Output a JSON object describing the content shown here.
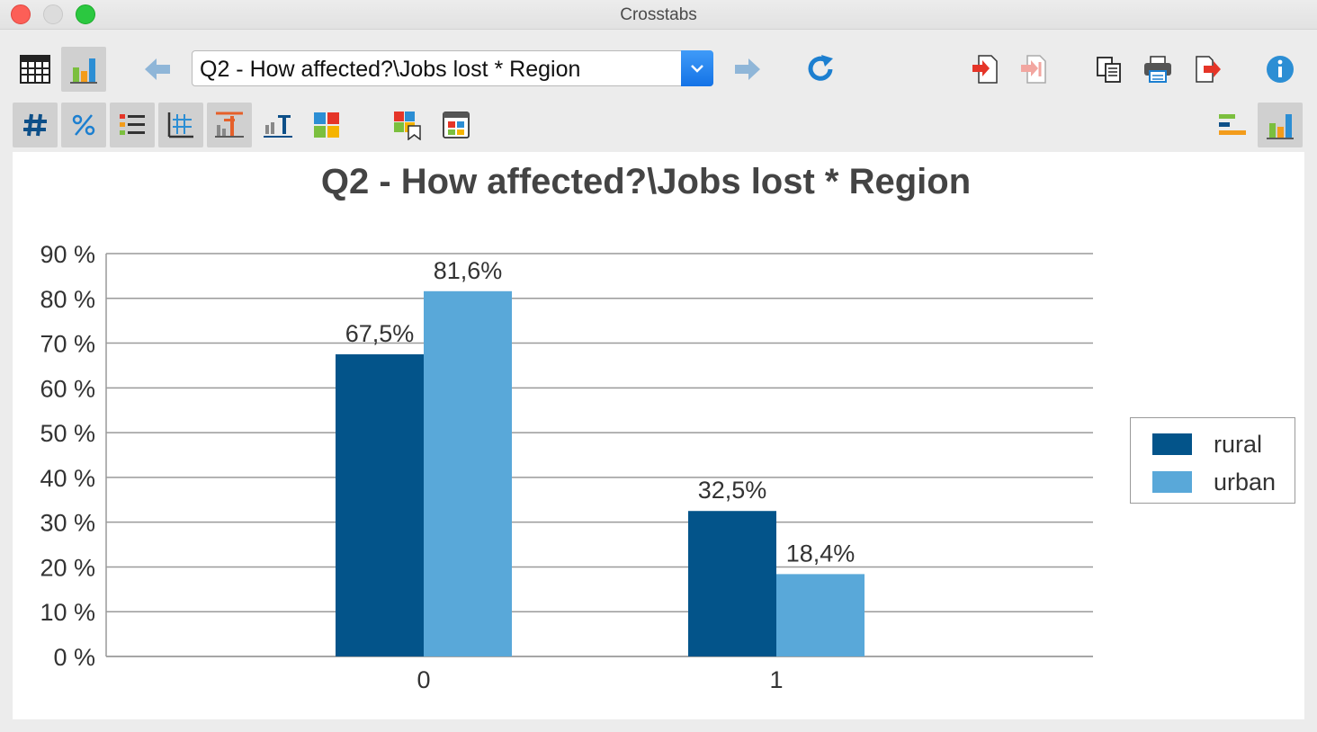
{
  "window": {
    "title": "Crosstabs"
  },
  "toolbar": {
    "variable_select": {
      "value": "Q2 - How affected?\\Jobs lost * Region"
    }
  },
  "icons": {
    "table_view": "table-grid-icon",
    "chart_view": "bar-chart-icon",
    "back": "arrow-left-icon",
    "forward": "arrow-right-icon",
    "refresh": "refresh-icon",
    "import": "import-icon",
    "import_disabled": "import-disabled-icon",
    "copy": "copy-icon",
    "print": "printer-icon",
    "export": "export-icon",
    "info": "info-icon"
  },
  "colors": {
    "rural": "#03548a",
    "urban": "#59a8d9",
    "accent_blue": "#1c7fd0",
    "red": "#e53528"
  },
  "chart_data": {
    "type": "bar",
    "title": "Q2 - How affected?\\Jobs lost * Region",
    "categories": [
      "0",
      "1"
    ],
    "series": [
      {
        "name": "rural",
        "values": [
          67.5,
          32.5
        ],
        "labels": [
          "67,5%",
          "32,5%"
        ],
        "color": "#03548a"
      },
      {
        "name": "urban",
        "values": [
          81.6,
          18.4
        ],
        "labels": [
          "81,6%",
          "18,4%"
        ],
        "color": "#59a8d9"
      }
    ],
    "ylim": [
      0,
      90
    ],
    "yticks": [
      "0 %",
      "10 %",
      "20 %",
      "30 %",
      "40 %",
      "50 %",
      "60 %",
      "70 %",
      "80 %",
      "90 %"
    ],
    "xlabel": "",
    "ylabel": "",
    "grid": true,
    "legend": "right"
  }
}
